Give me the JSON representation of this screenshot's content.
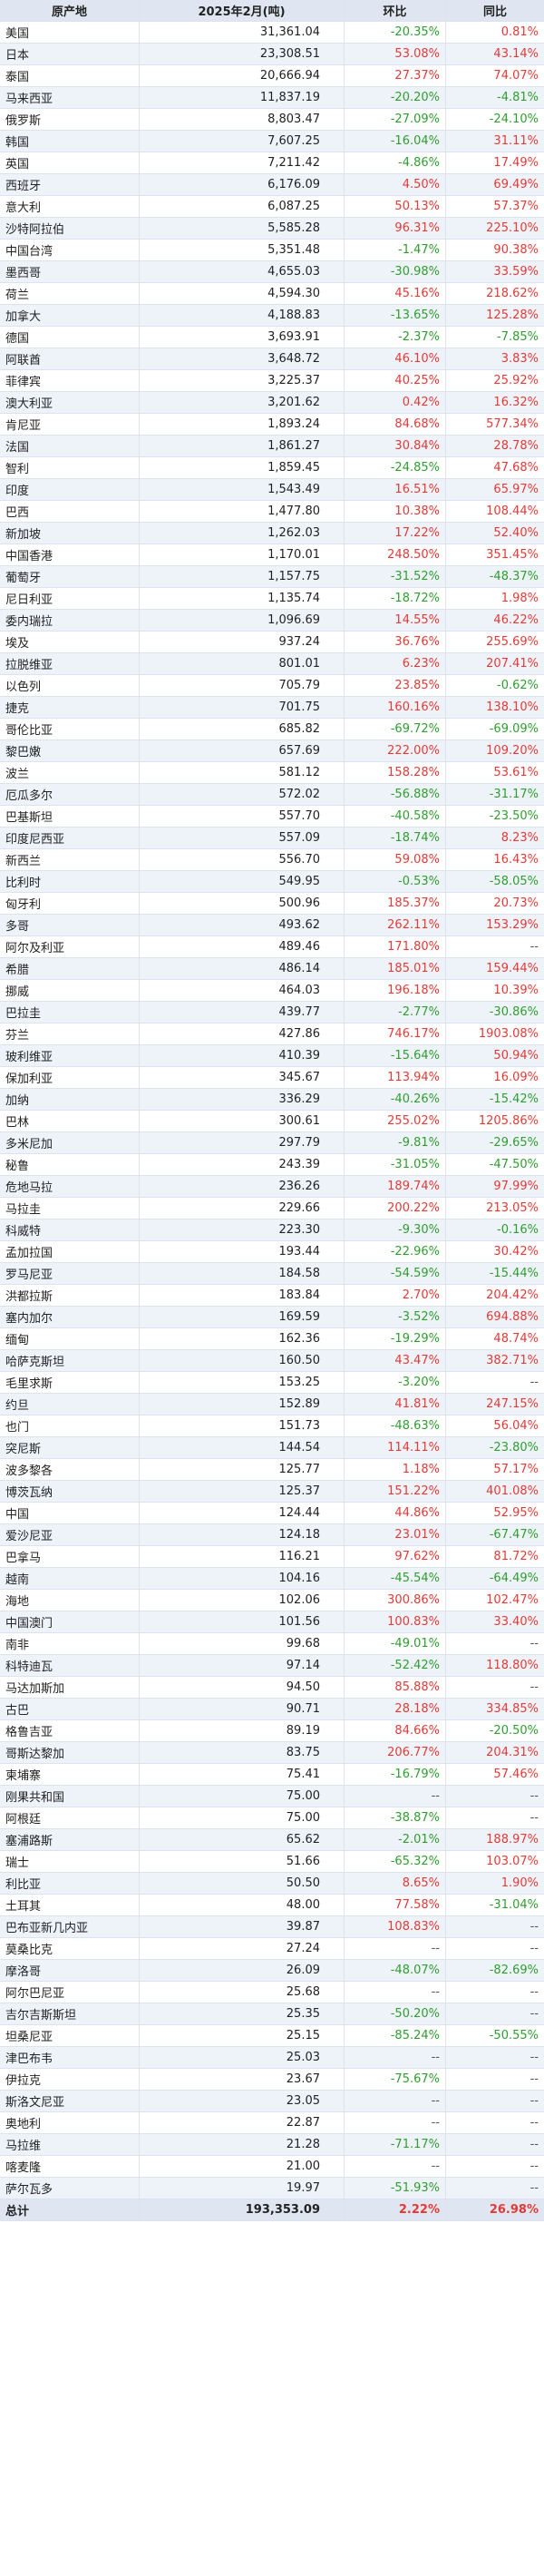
{
  "table": {
    "headers": [
      "原产地",
      "2025年2月(吨)",
      "环比",
      "同比"
    ],
    "rows": [
      [
        "美国",
        "31,361.04",
        "-20.35%",
        "0.81%"
      ],
      [
        "日本",
        "23,308.51",
        "53.08%",
        "43.14%"
      ],
      [
        "泰国",
        "20,666.94",
        "27.37%",
        "74.07%"
      ],
      [
        "马来西亚",
        "11,837.19",
        "-20.20%",
        "-4.81%"
      ],
      [
        "俄罗斯",
        "8,803.47",
        "-27.09%",
        "-24.10%"
      ],
      [
        "韩国",
        "7,607.25",
        "-16.04%",
        "31.11%"
      ],
      [
        "英国",
        "7,211.42",
        "-4.86%",
        "17.49%"
      ],
      [
        "西班牙",
        "6,176.09",
        "4.50%",
        "69.49%"
      ],
      [
        "意大利",
        "6,087.25",
        "50.13%",
        "57.37%"
      ],
      [
        "沙特阿拉伯",
        "5,585.28",
        "96.31%",
        "225.10%"
      ],
      [
        "中国台湾",
        "5,351.48",
        "-1.47%",
        "90.38%"
      ],
      [
        "墨西哥",
        "4,655.03",
        "-30.98%",
        "33.59%"
      ],
      [
        "荷兰",
        "4,594.30",
        "45.16%",
        "218.62%"
      ],
      [
        "加拿大",
        "4,188.83",
        "-13.65%",
        "125.28%"
      ],
      [
        "德国",
        "3,693.91",
        "-2.37%",
        "-7.85%"
      ],
      [
        "阿联酋",
        "3,648.72",
        "46.10%",
        "3.83%"
      ],
      [
        "菲律宾",
        "3,225.37",
        "40.25%",
        "25.92%"
      ],
      [
        "澳大利亚",
        "3,201.62",
        "0.42%",
        "16.32%"
      ],
      [
        "肯尼亚",
        "1,893.24",
        "84.68%",
        "577.34%"
      ],
      [
        "法国",
        "1,861.27",
        "30.84%",
        "28.78%"
      ],
      [
        "智利",
        "1,859.45",
        "-24.85%",
        "47.68%"
      ],
      [
        "印度",
        "1,543.49",
        "16.51%",
        "65.97%"
      ],
      [
        "巴西",
        "1,477.80",
        "10.38%",
        "108.44%"
      ],
      [
        "新加坡",
        "1,262.03",
        "17.22%",
        "52.40%"
      ],
      [
        "中国香港",
        "1,170.01",
        "248.50%",
        "351.45%"
      ],
      [
        "葡萄牙",
        "1,157.75",
        "-31.52%",
        "-48.37%"
      ],
      [
        "尼日利亚",
        "1,135.74",
        "-18.72%",
        "1.98%"
      ],
      [
        "委内瑞拉",
        "1,096.69",
        "14.55%",
        "46.22%"
      ],
      [
        "埃及",
        "937.24",
        "36.76%",
        "255.69%"
      ],
      [
        "拉脱维亚",
        "801.01",
        "6.23%",
        "207.41%"
      ],
      [
        "以色列",
        "705.79",
        "23.85%",
        "-0.62%"
      ],
      [
        "捷克",
        "701.75",
        "160.16%",
        "138.10%"
      ],
      [
        "哥伦比亚",
        "685.82",
        "-69.72%",
        "-69.09%"
      ],
      [
        "黎巴嫩",
        "657.69",
        "222.00%",
        "109.20%"
      ],
      [
        "波兰",
        "581.12",
        "158.28%",
        "53.61%"
      ],
      [
        "厄瓜多尔",
        "572.02",
        "-56.88%",
        "-31.17%"
      ],
      [
        "巴基斯坦",
        "557.70",
        "-40.58%",
        "-23.50%"
      ],
      [
        "印度尼西亚",
        "557.09",
        "-18.74%",
        "8.23%"
      ],
      [
        "新西兰",
        "556.70",
        "59.08%",
        "16.43%"
      ],
      [
        "比利时",
        "549.95",
        "-0.53%",
        "-58.05%"
      ],
      [
        "匈牙利",
        "500.96",
        "185.37%",
        "20.73%"
      ],
      [
        "多哥",
        "493.62",
        "262.11%",
        "153.29%"
      ],
      [
        "阿尔及利亚",
        "489.46",
        "171.80%",
        "--"
      ],
      [
        "希腊",
        "486.14",
        "185.01%",
        "159.44%"
      ],
      [
        "挪威",
        "464.03",
        "196.18%",
        "10.39%"
      ],
      [
        "巴拉圭",
        "439.77",
        "-2.77%",
        "-30.86%"
      ],
      [
        "芬兰",
        "427.86",
        "746.17%",
        "1903.08%"
      ],
      [
        "玻利维亚",
        "410.39",
        "-15.64%",
        "50.94%"
      ],
      [
        "保加利亚",
        "345.67",
        "113.94%",
        "16.09%"
      ],
      [
        "加纳",
        "336.29",
        "-40.26%",
        "-15.42%"
      ],
      [
        "巴林",
        "300.61",
        "255.02%",
        "1205.86%"
      ],
      [
        "多米尼加",
        "297.79",
        "-9.81%",
        "-29.65%"
      ],
      [
        "秘鲁",
        "243.39",
        "-31.05%",
        "-47.50%"
      ],
      [
        "危地马拉",
        "236.26",
        "189.74%",
        "97.99%"
      ],
      [
        "马拉圭",
        "229.66",
        "200.22%",
        "213.05%"
      ],
      [
        "科威特",
        "223.30",
        "-9.30%",
        "-0.16%"
      ],
      [
        "孟加拉国",
        "193.44",
        "-22.96%",
        "30.42%"
      ],
      [
        "罗马尼亚",
        "184.58",
        "-54.59%",
        "-15.44%"
      ],
      [
        "洪都拉斯",
        "183.84",
        "2.70%",
        "204.42%"
      ],
      [
        "塞内加尔",
        "169.59",
        "-3.52%",
        "694.88%"
      ],
      [
        "缅甸",
        "162.36",
        "-19.29%",
        "48.74%"
      ],
      [
        "哈萨克斯坦",
        "160.50",
        "43.47%",
        "382.71%"
      ],
      [
        "毛里求斯",
        "153.25",
        "-3.20%",
        "--"
      ],
      [
        "约旦",
        "152.89",
        "41.81%",
        "247.15%"
      ],
      [
        "也门",
        "151.73",
        "-48.63%",
        "56.04%"
      ],
      [
        "突尼斯",
        "144.54",
        "114.11%",
        "-23.80%"
      ],
      [
        "波多黎各",
        "125.77",
        "1.18%",
        "57.17%"
      ],
      [
        "博茨瓦纳",
        "125.37",
        "151.22%",
        "401.08%"
      ],
      [
        "中国",
        "124.44",
        "44.86%",
        "52.95%"
      ],
      [
        "爱沙尼亚",
        "124.18",
        "23.01%",
        "-67.47%"
      ],
      [
        "巴拿马",
        "116.21",
        "97.62%",
        "81.72%"
      ],
      [
        "越南",
        "104.16",
        "-45.54%",
        "-64.49%"
      ],
      [
        "海地",
        "102.06",
        "300.86%",
        "102.47%"
      ],
      [
        "中国澳门",
        "101.56",
        "100.83%",
        "33.40%"
      ],
      [
        "南非",
        "99.68",
        "-49.01%",
        "--"
      ],
      [
        "科特迪瓦",
        "97.14",
        "-52.42%",
        "118.80%"
      ],
      [
        "马达加斯加",
        "94.50",
        "85.88%",
        "--"
      ],
      [
        "古巴",
        "90.71",
        "28.18%",
        "334.85%"
      ],
      [
        "格鲁吉亚",
        "89.19",
        "84.66%",
        "-20.50%"
      ],
      [
        "哥斯达黎加",
        "83.75",
        "206.77%",
        "204.31%"
      ],
      [
        "柬埔寨",
        "75.41",
        "-16.79%",
        "57.46%"
      ],
      [
        "刚果共和国",
        "75.00",
        "--",
        "--"
      ],
      [
        "阿根廷",
        "75.00",
        "-38.87%",
        "--"
      ],
      [
        "塞浦路斯",
        "65.62",
        "-2.01%",
        "188.97%"
      ],
      [
        "瑞士",
        "51.66",
        "-65.32%",
        "103.07%"
      ],
      [
        "利比亚",
        "50.50",
        "8.65%",
        "1.90%"
      ],
      [
        "土耳其",
        "48.00",
        "77.58%",
        "-31.04%"
      ],
      [
        "巴布亚新几内亚",
        "39.87",
        "108.83%",
        "--"
      ],
      [
        "莫桑比克",
        "27.24",
        "--",
        "--"
      ],
      [
        "摩洛哥",
        "26.09",
        "-48.07%",
        "-82.69%"
      ],
      [
        "阿尔巴尼亚",
        "25.68",
        "--",
        "--"
      ],
      [
        "吉尔吉斯斯坦",
        "25.35",
        "-50.20%",
        "--"
      ],
      [
        "坦桑尼亚",
        "25.15",
        "-85.24%",
        "-50.55%"
      ],
      [
        "津巴布韦",
        "25.03",
        "--",
        "--"
      ],
      [
        "伊拉克",
        "23.67",
        "-75.67%",
        "--"
      ],
      [
        "斯洛文尼亚",
        "23.05",
        "--",
        "--"
      ],
      [
        "奥地利",
        "22.87",
        "--",
        "--"
      ],
      [
        "马拉维",
        "21.28",
        "-71.17%",
        "--"
      ],
      [
        "喀麦隆",
        "21.00",
        "--",
        "--"
      ],
      [
        "萨尔瓦多",
        "19.97",
        "-51.93%",
        "--"
      ]
    ],
    "total": [
      "总计",
      "193,353.09",
      "2.22%",
      "26.98%"
    ]
  },
  "colors": {
    "positive": "#e53935",
    "negative": "#2e9e2e",
    "header_bg": "#dfe6f1",
    "stripe_bg": "#eef3fa"
  }
}
